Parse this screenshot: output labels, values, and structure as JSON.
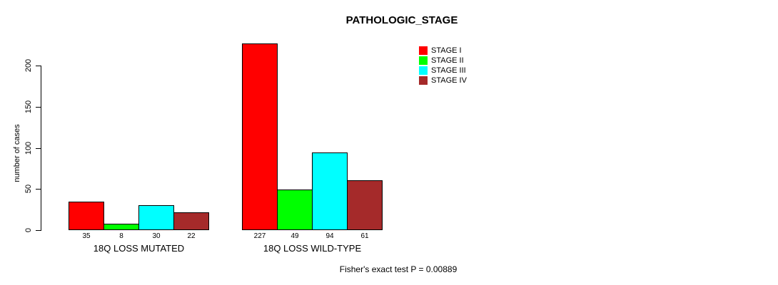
{
  "window": {
    "background_color": "#FFFFFF",
    "text_color": "#000000",
    "axis_color": "#000000"
  },
  "chart_data": {
    "type": "bar",
    "title": "PATHOLOGIC_STAGE",
    "ylabel": "number of cases",
    "xlabel": "",
    "groups": [
      "18Q LOSS MUTATED",
      "18Q LOSS WILD-TYPE"
    ],
    "series": [
      {
        "name": "STAGE I",
        "color": "#FF0000",
        "values": [
          35,
          227
        ]
      },
      {
        "name": "STAGE II",
        "color": "#00FF00",
        "values": [
          8,
          49
        ]
      },
      {
        "name": "STAGE III",
        "color": "#00FFFF",
        "values": [
          30,
          94
        ]
      },
      {
        "name": "STAGE IV",
        "color": "#A52A2A",
        "values": [
          22,
          61
        ]
      }
    ],
    "y_ticks": [
      0,
      50,
      100,
      150,
      200
    ],
    "ylim": [
      0,
      232
    ],
    "grid": false,
    "bar_value_labels_shown": true,
    "legend_position": "top-right",
    "footnote": "Fisher's exact test P = 0.00889"
  }
}
